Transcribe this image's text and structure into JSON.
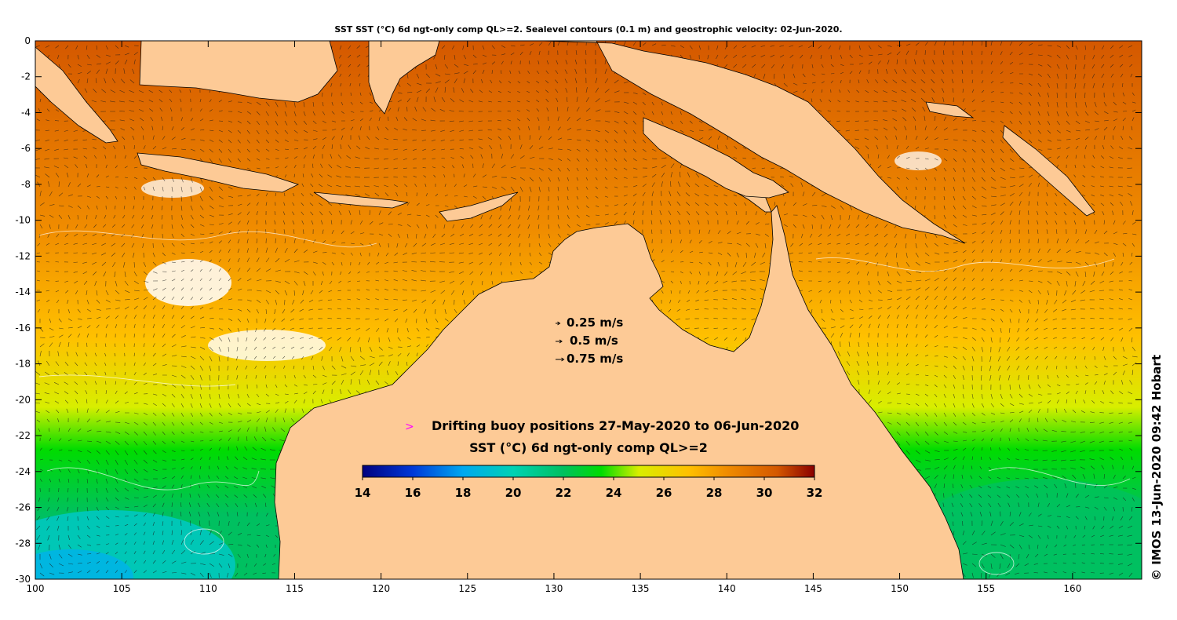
{
  "title": "SST SST (°C) 6d ngt-only comp QL>=2. Sealevel contours (0.1 m) and geostrophic velocity: 02-Jun-2020.",
  "axes": {
    "x": {
      "min": 100,
      "max": 164,
      "ticks": [
        100,
        105,
        110,
        115,
        120,
        125,
        130,
        135,
        140,
        145,
        150,
        155,
        160
      ]
    },
    "y": {
      "min": -30,
      "max": 0,
      "ticks": [
        0,
        -2,
        -4,
        -6,
        -8,
        -10,
        -12,
        -14,
        -16,
        -18,
        -20,
        -22,
        -24,
        -26,
        -28,
        -30
      ]
    }
  },
  "velocity_legend": [
    {
      "label": "0.25 m/s",
      "speed": 0.25
    },
    {
      "label": "0.5 m/s",
      "speed": 0.5
    },
    {
      "label": "0.75 m/s",
      "speed": 0.75
    }
  ],
  "buoy_legend": {
    "marker": ">",
    "label": "Drifting buoy positions 27-May-2020 to 06-Jun-2020",
    "marker_color": "#ff00ff"
  },
  "colorbar": {
    "title": "SST (°C) 6d ngt-only comp QL>=2",
    "min": 14,
    "max": 32,
    "ticks": [
      "14",
      "16",
      "18",
      "20",
      "22",
      "24",
      "26",
      "28",
      "30",
      "32"
    ]
  },
  "colors": {
    "land": "#fdca96",
    "coast": "#000000",
    "sst_stops": [
      {
        "t": 14,
        "c": "#00007f"
      },
      {
        "t": 16,
        "c": "#0038d8"
      },
      {
        "t": 18,
        "c": "#00a8f0"
      },
      {
        "t": 20,
        "c": "#00d2b4"
      },
      {
        "t": 22,
        "c": "#00c060"
      },
      {
        "t": 23.5,
        "c": "#00dc00"
      },
      {
        "t": 25,
        "c": "#d8ee00"
      },
      {
        "t": 27,
        "c": "#ffc000"
      },
      {
        "t": 28.5,
        "c": "#f08c00"
      },
      {
        "t": 30.5,
        "c": "#d45800"
      },
      {
        "t": 32,
        "c": "#8a0000"
      }
    ]
  },
  "copyright": "© IMOS 13-Jun-2020 09:42 Hobart"
}
